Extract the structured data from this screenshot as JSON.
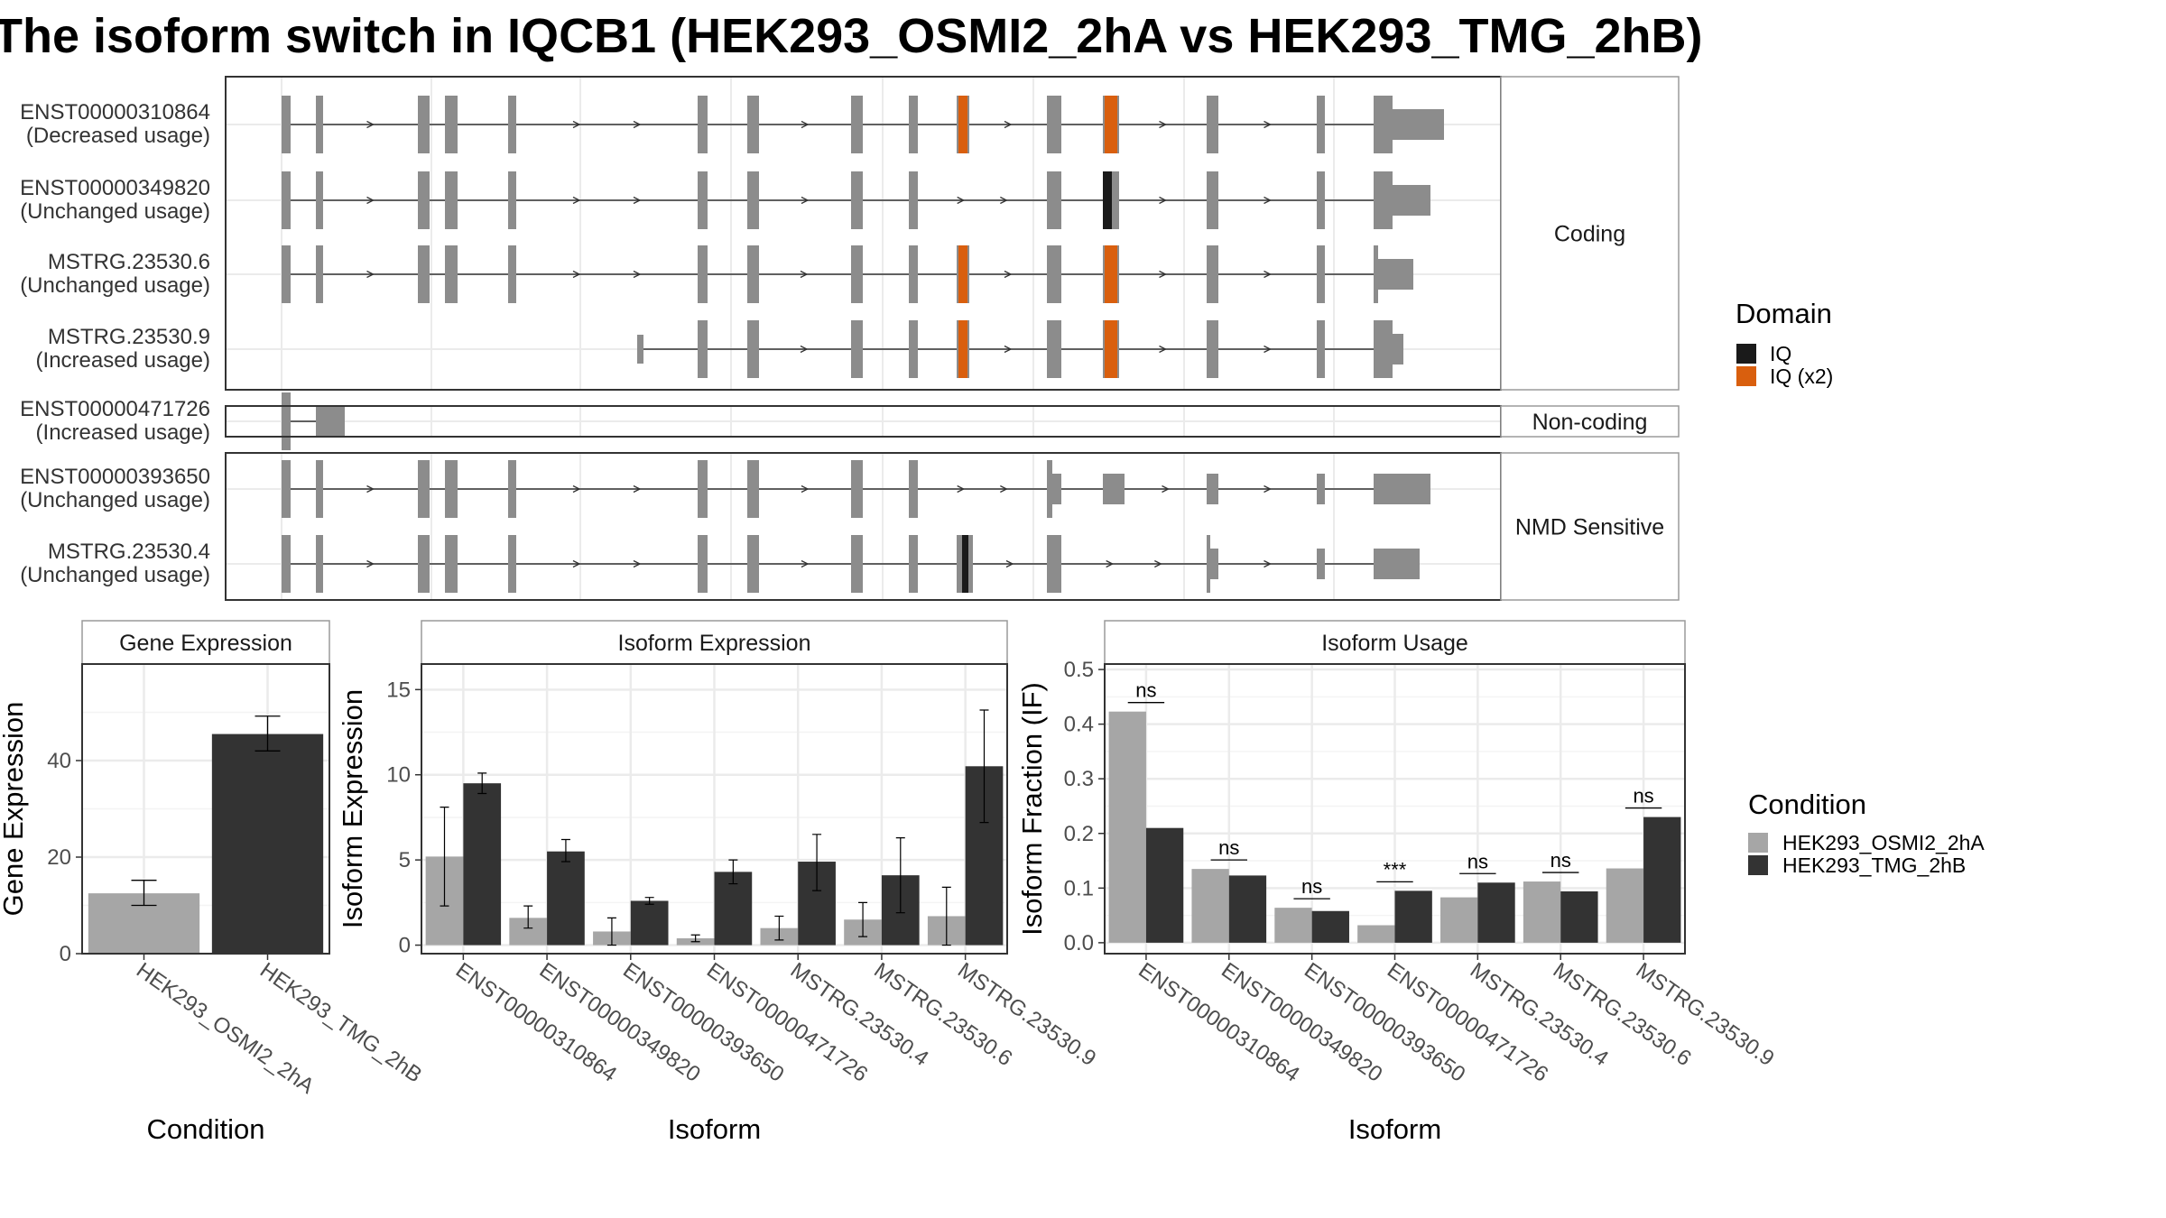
{
  "title": "The isoform switch in IQCB1 (HEK293_OSMI2_2hA vs HEK293_TMG_2hB)",
  "colors": {
    "exon": "#8c8c8c",
    "domain_iq": "#1a1a1a",
    "domain_iq_x2": "#d95f0e",
    "cond_a": "#a6a6a6",
    "cond_b": "#333333",
    "panel_border": "#333333",
    "strip_border": "#9a9a9a",
    "grid": "#ebebeb"
  },
  "structure": {
    "categories": [
      {
        "name": "Coding",
        "transcripts": [
          {
            "id": "ENST00000310864",
            "label": "(Decreased usage)"
          },
          {
            "id": "ENST00000349820",
            "label": "(Unchanged usage)"
          },
          {
            "id": "MSTRG.23530.6",
            "label": "(Unchanged usage)"
          },
          {
            "id": "MSTRG.23530.9",
            "label": "(Increased usage)"
          }
        ]
      },
      {
        "name": "Non-coding",
        "transcripts": [
          {
            "id": "ENST00000471726",
            "label": "(Increased usage)"
          }
        ]
      },
      {
        "name": "NMD Sensitive",
        "transcripts": [
          {
            "id": "ENST00000393650",
            "label": "(Unchanged usage)"
          },
          {
            "id": "MSTRG.23530.4",
            "label": "(Unchanged usage)"
          }
        ]
      }
    ],
    "legend": {
      "title": "Domain",
      "items": [
        {
          "label": "IQ",
          "color": "#1a1a1a"
        },
        {
          "label": "IQ (x2)",
          "color": "#d95f0e"
        }
      ]
    }
  },
  "chart_data": [
    {
      "type": "bar",
      "title": "Gene Expression",
      "xlabel": "Condition",
      "ylabel": "Gene Expression",
      "categories": [
        "HEK293_OSMI2_2hA",
        "HEK293_TMG_2hB"
      ],
      "values": [
        12.5,
        45.5
      ],
      "error": [
        [
          10,
          15.2
        ],
        [
          42,
          49.2
        ]
      ],
      "ylim": [
        0,
        60
      ],
      "yticks": [
        0,
        20,
        40
      ],
      "grid": true
    },
    {
      "type": "bar",
      "title": "Isoform Expression",
      "xlabel": "Isoform",
      "ylabel": "Isoform Expression",
      "categories": [
        "ENST00000310864",
        "ENST00000349820",
        "ENST00000393650",
        "ENST00000471726",
        "MSTRG.23530.4",
        "MSTRG.23530.6",
        "MSTRG.23530.9"
      ],
      "series": [
        {
          "name": "HEK293_OSMI2_2hA",
          "values": [
            5.2,
            1.6,
            0.8,
            0.4,
            1.0,
            1.5,
            1.7
          ],
          "error": [
            [
              2.3,
              8.1
            ],
            [
              1.0,
              2.3
            ],
            [
              0.0,
              1.6
            ],
            [
              0.2,
              0.6
            ],
            [
              0.3,
              1.7
            ],
            [
              0.5,
              2.5
            ],
            [
              0.0,
              3.4
            ]
          ]
        },
        {
          "name": "HEK293_TMG_2hB",
          "values": [
            9.5,
            5.5,
            2.6,
            4.3,
            4.9,
            4.1,
            10.5
          ],
          "error": [
            [
              8.9,
              10.1
            ],
            [
              4.9,
              6.2
            ],
            [
              2.4,
              2.8
            ],
            [
              3.6,
              5.0
            ],
            [
              3.2,
              6.5
            ],
            [
              1.9,
              6.3
            ],
            [
              7.2,
              13.8
            ]
          ]
        }
      ],
      "ylim": [
        -0.5,
        16.5
      ],
      "yticks": [
        0,
        5,
        10,
        15
      ],
      "grid": true
    },
    {
      "type": "bar",
      "title": "Isoform Usage",
      "xlabel": "Isoform",
      "ylabel": "Isoform Fraction (IF)",
      "categories": [
        "ENST00000310864",
        "ENST00000349820",
        "ENST00000393650",
        "ENST00000471726",
        "MSTRG.23530.4",
        "MSTRG.23530.6",
        "MSTRG.23530.9"
      ],
      "series": [
        {
          "name": "HEK293_OSMI2_2hA",
          "values": [
            0.423,
            0.135,
            0.064,
            0.032,
            0.083,
            0.112,
            0.136
          ]
        },
        {
          "name": "HEK293_TMG_2hB",
          "values": [
            0.21,
            0.123,
            0.058,
            0.095,
            0.11,
            0.094,
            0.23
          ]
        }
      ],
      "significance": [
        "ns",
        "ns",
        "ns",
        "***",
        "ns",
        "ns",
        "ns"
      ],
      "ylim": [
        -0.02,
        0.51
      ],
      "yticks": [
        0.0,
        0.1,
        0.2,
        0.3,
        0.4,
        0.5
      ],
      "ytick_labels": [
        "0.0",
        "0.1",
        "0.2",
        "0.3",
        "0.4",
        "0.5"
      ],
      "grid": true
    }
  ],
  "condition_legend": {
    "title": "Condition",
    "items": [
      {
        "label": "HEK293_OSMI2_2hA",
        "color": "#a6a6a6"
      },
      {
        "label": "HEK293_TMG_2hB",
        "color": "#333333"
      }
    ]
  }
}
